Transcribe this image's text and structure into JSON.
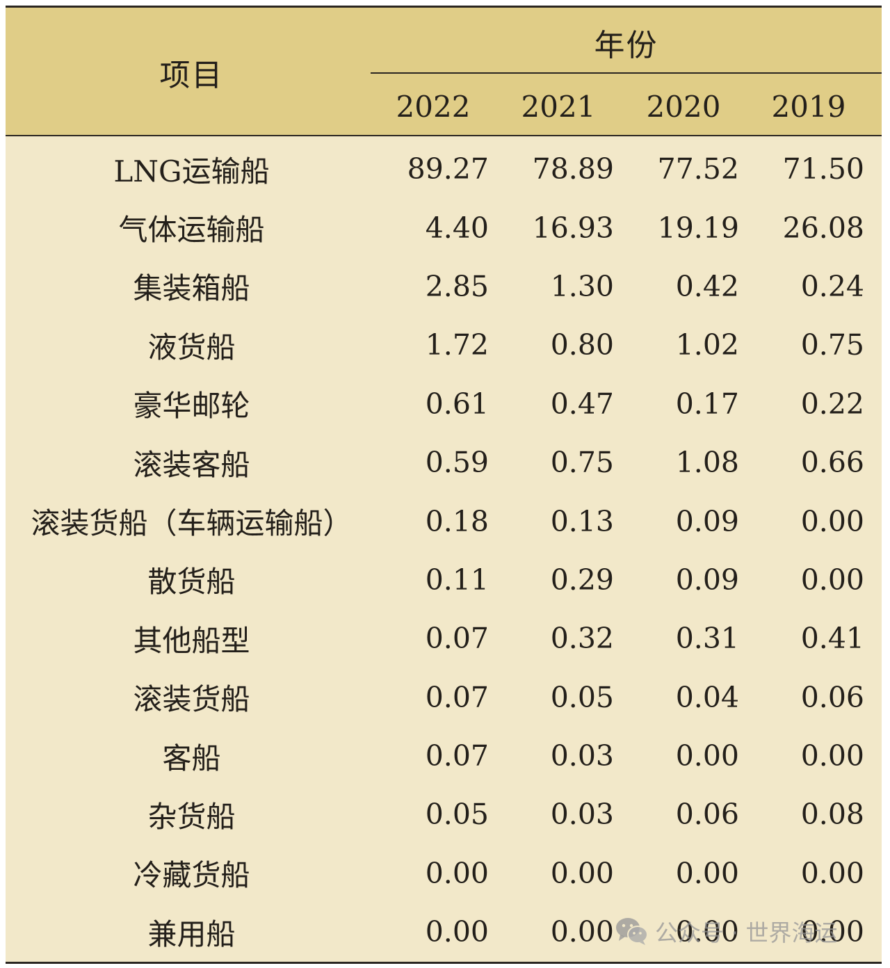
{
  "table": {
    "header": {
      "item_label": "项目",
      "year_group_label": "年份",
      "years": [
        "2022",
        "2021",
        "2020",
        "2019"
      ]
    },
    "rows": [
      {
        "name": "LNG运输船",
        "values": [
          "89.27",
          "78.89",
          "77.52",
          "71.50"
        ]
      },
      {
        "name": "气体运输船",
        "values": [
          "4.40",
          "16.93",
          "19.19",
          "26.08"
        ]
      },
      {
        "name": "集装箱船",
        "values": [
          "2.85",
          "1.30",
          "0.42",
          "0.24"
        ]
      },
      {
        "name": "液货船",
        "values": [
          "1.72",
          "0.80",
          "1.02",
          "0.75"
        ]
      },
      {
        "name": "豪华邮轮",
        "values": [
          "0.61",
          "0.47",
          "0.17",
          "0.22"
        ]
      },
      {
        "name": "滚装客船",
        "values": [
          "0.59",
          "0.75",
          "1.08",
          "0.66"
        ]
      },
      {
        "name": "滚装货船（车辆运输船）",
        "values": [
          "0.18",
          "0.13",
          "0.09",
          "0.00"
        ]
      },
      {
        "name": "散货船",
        "values": [
          "0.11",
          "0.29",
          "0.09",
          "0.00"
        ]
      },
      {
        "name": "其他船型",
        "values": [
          "0.07",
          "0.32",
          "0.31",
          "0.41"
        ]
      },
      {
        "name": "滚装货船",
        "values": [
          "0.07",
          "0.05",
          "0.04",
          "0.06"
        ]
      },
      {
        "name": "客船",
        "values": [
          "0.07",
          "0.03",
          "0.00",
          "0.00"
        ]
      },
      {
        "name": "杂货船",
        "values": [
          "0.05",
          "0.03",
          "0.06",
          "0.08"
        ]
      },
      {
        "name": "冷藏货船",
        "values": [
          "0.00",
          "0.00",
          "0.00",
          "0.00"
        ]
      },
      {
        "name": "兼用船",
        "values": [
          "0.00",
          "0.00",
          "0.00",
          "0.00"
        ]
      }
    ]
  },
  "watermark": {
    "icon": "wechat-icon",
    "text": "公众号 · 世界海运"
  }
}
